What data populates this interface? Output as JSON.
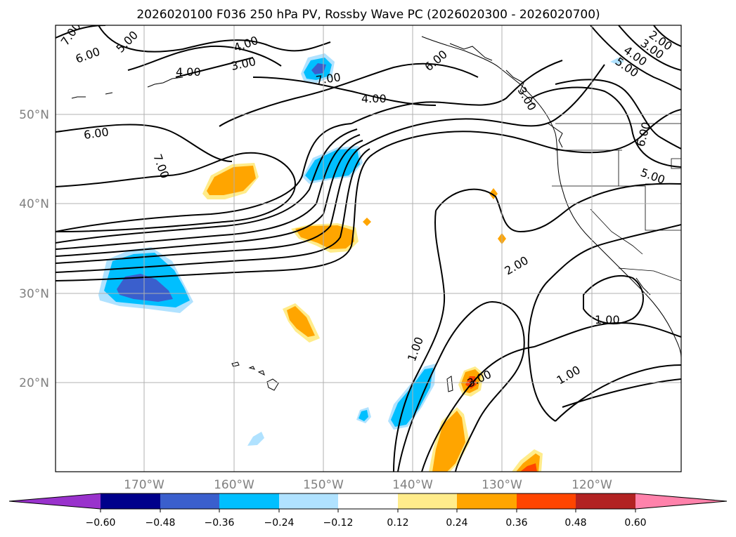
{
  "title": "2026020100 F036 250 hPa PV, Rossby Wave PC (2026020300 - 2026020700)",
  "lat_labels": [
    "50°N",
    "40°N",
    "30°N",
    "20°N"
  ],
  "lon_labels": [
    "170°W",
    "160°W",
    "150°W",
    "140°W",
    "130°W",
    "120°W"
  ],
  "contour_labels": [
    "7.00",
    "6.00",
    "5.00",
    "4.00",
    "4.00",
    "3.00",
    "7.00",
    "6.00",
    "4.00",
    "6.00",
    "7.00",
    "3.00",
    "6.00",
    "5.00",
    "4.00",
    "3.00",
    "2.00",
    "5.00",
    "2.00",
    "1.00",
    "1.00",
    "1.00",
    "3.00"
  ],
  "colorbar": {
    "ticks": [
      "−0.60",
      "−0.48",
      "−0.36",
      "−0.24",
      "−0.12",
      "0.12",
      "0.24",
      "0.36",
      "0.48",
      "0.60"
    ],
    "colors": [
      "#9932cc",
      "#00008b",
      "#3a5fcd",
      "#00bfff",
      "#b0e2ff",
      "#ffffff",
      "#ffec8b",
      "#ffa500",
      "#ff4500",
      "#b22222",
      "#ff82ab"
    ]
  },
  "colors": {
    "grid": "#b0b0b0",
    "contour": "#000000",
    "coast": "#000000"
  }
}
